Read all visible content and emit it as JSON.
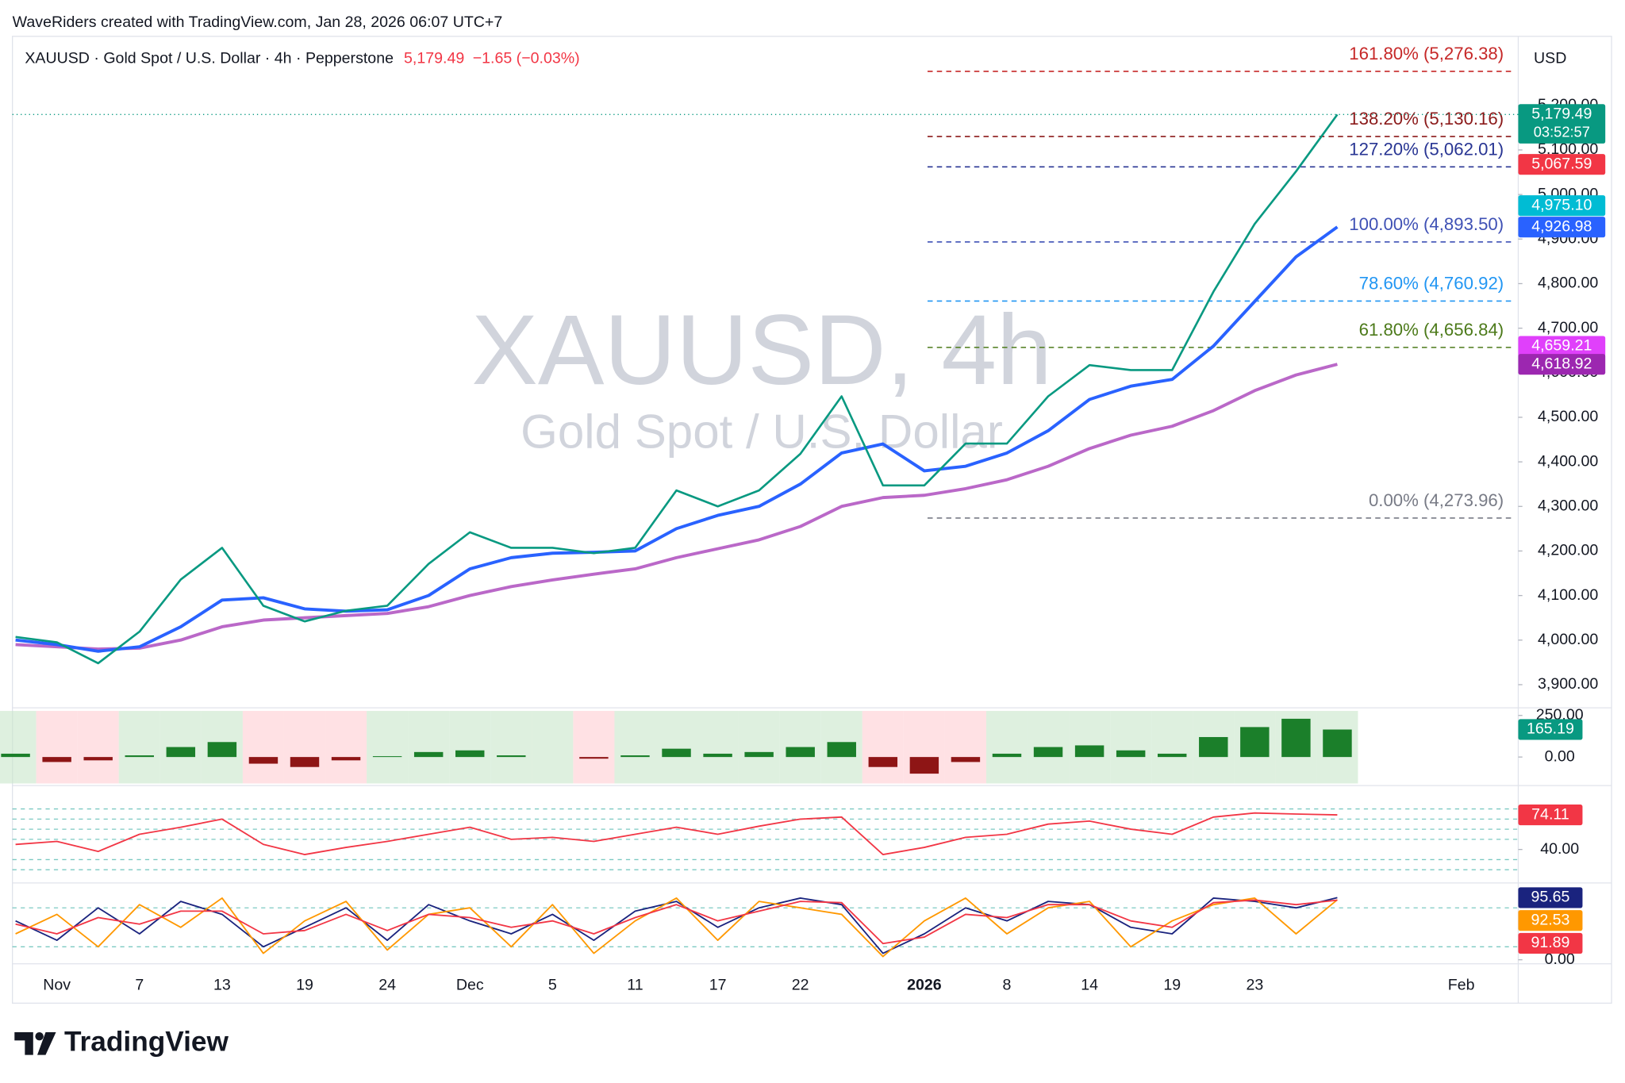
{
  "header": {
    "credit": "WaveRiders created with TradingView.com, Jan 28, 2026 06:07 UTC+7",
    "symbol": "XAUUSD · Gold Spot / U.S. Dollar · 4h · Pepperstone",
    "last": "5,179.49",
    "change": "−1.65 (−0.03%)"
  },
  "watermark": {
    "symbol": "XAUUSD, 4h",
    "name": "Gold Spot / U.S. Dollar"
  },
  "footer": {
    "brand": "TradingView"
  },
  "chart_data": {
    "type": "line",
    "currency": "USD",
    "categories": [
      null,
      "Nov",
      null,
      "7",
      null,
      "13",
      null,
      "19",
      null,
      "24",
      null,
      "Dec",
      null,
      "5",
      null,
      "11",
      null,
      "17",
      null,
      "22",
      null,
      null,
      "2026",
      null,
      "8",
      null,
      "14",
      null,
      "19",
      null,
      "23",
      null,
      null,
      null,
      null,
      "Feb"
    ],
    "series": [
      {
        "color": "#089981",
        "values": [
          4007,
          3995,
          3948,
          4019,
          4136,
          4207,
          4077,
          4042,
          4066,
          4077,
          4171,
          4242,
          4207,
          4207,
          4195,
          4207,
          4336,
          4300,
          4336,
          4418,
          4547,
          4347,
          4347,
          4441,
          4441,
          4547,
          4617,
          4606,
          4606,
          4782,
          4934,
          5052,
          5179.49,
          null,
          null,
          null
        ]
      },
      {
        "color": "#2962ff",
        "values": [
          4000,
          3990,
          3975,
          3985,
          4030,
          4090,
          4095,
          4070,
          4065,
          4068,
          4100,
          4160,
          4185,
          4195,
          4197,
          4200,
          4250,
          4280,
          4300,
          4350,
          4420,
          4440,
          4380,
          4390,
          4420,
          4470,
          4540,
          4570,
          4585,
          4660,
          4760,
          4860,
          4926.98,
          null,
          null,
          null
        ]
      },
      {
        "color": "#ba68c8",
        "values": [
          3990,
          3985,
          3980,
          3982,
          4000,
          4030,
          4045,
          4050,
          4055,
          4060,
          4075,
          4100,
          4120,
          4135,
          4148,
          4160,
          4185,
          4205,
          4225,
          4255,
          4300,
          4320,
          4325,
          4340,
          4360,
          4390,
          4430,
          4460,
          4480,
          4515,
          4560,
          4595,
          4618.92,
          null,
          null,
          null
        ]
      }
    ],
    "ylim": [
      3855,
      5355
    ],
    "yticks": [
      {
        "value": 3900,
        "label": "3,900.00"
      },
      {
        "value": 4000,
        "label": "4,000.00"
      },
      {
        "value": 4100,
        "label": "4,100.00"
      },
      {
        "value": 4200,
        "label": "4,200.00"
      },
      {
        "value": 4300,
        "label": "4,300.00"
      },
      {
        "value": 4400,
        "label": "4,400.00"
      },
      {
        "value": 4500,
        "label": "4,500.00"
      },
      {
        "value": 4600,
        "label": "4,600.00"
      },
      {
        "value": 4700,
        "label": "4,700.00"
      },
      {
        "value": 4800,
        "label": "4,800.00"
      },
      {
        "value": 4900,
        "label": "4,900.00"
      },
      {
        "value": 5000,
        "label": "5,000.00"
      },
      {
        "value": 5100,
        "label": "5,100.00"
      },
      {
        "value": 5200,
        "label": "5,200.00"
      }
    ],
    "fib_levels": [
      {
        "value": 5276.38,
        "label": "161.80% (5,276.38)",
        "color": "#c62828"
      },
      {
        "value": 5130.16,
        "label": "138.20% (5,130.16)",
        "color": "#8b1a1a"
      },
      {
        "value": 5062.01,
        "label": "127.20% (5,062.01)",
        "color": "#283593"
      },
      {
        "value": 4893.5,
        "label": "100.00% (4,893.50)",
        "color": "#3f51b5"
      },
      {
        "value": 4760.92,
        "label": "78.60% (4,760.92)",
        "color": "#2196f3"
      },
      {
        "value": 4656.84,
        "label": "61.80% (4,656.84)",
        "color": "#4c7a1a"
      },
      {
        "value": 4273.96,
        "label": "0.00% (4,273.96)",
        "color": "#787b86"
      }
    ],
    "price_labels": [
      {
        "value": 5179.49,
        "label": "5,179.49",
        "color": "#089981"
      },
      {
        "value": 5067.59,
        "label": "5,067.59",
        "color": "#f23645"
      },
      {
        "value": 4975.1,
        "label": "4,975.10",
        "color": "#00bcd4"
      },
      {
        "value": 4926.98,
        "label": "4,926.98",
        "color": "#2962ff"
      },
      {
        "value": 4659.21,
        "label": "4,659.21",
        "color": "#e040fb"
      },
      {
        "value": 4618.92,
        "label": "4,618.92",
        "color": "#9c27b0"
      }
    ],
    "countdown": "03:52:57",
    "panes": [
      {
        "type": "histogram",
        "ylim": [
          -159,
          277
        ],
        "yticks": [
          {
            "value": 250,
            "label": "250.00"
          },
          {
            "value": 0,
            "label": "0.00"
          }
        ],
        "up_color": "#1b7f2a",
        "down_color": "#8e1515",
        "series": [
          {
            "color": "#089981",
            "values": [
              20,
              -30,
              -20,
              10,
              60,
              90,
              -40,
              -60,
              -20,
              5,
              30,
              40,
              10,
              0,
              -10,
              10,
              50,
              20,
              30,
              60,
              90,
              -60,
              -100,
              -30,
              20,
              60,
              70,
              40,
              20,
              120,
              180,
              230,
              165.19,
              null,
              null,
              null
            ]
          }
        ]
      },
      {
        "type": "line",
        "ylim": [
          9,
          99
        ],
        "yticks": [
          {
            "value": 40,
            "label": "40.00"
          }
        ],
        "levels": [
          80,
          70,
          60,
          50,
          30,
          20
        ],
        "series": [
          {
            "color": "#f23645",
            "values": [
              45,
              48,
              38,
              55,
              62,
              70,
              45,
              35,
              42,
              48,
              55,
              62,
              50,
              52,
              48,
              55,
              62,
              55,
              63,
              70,
              72,
              35,
              42,
              52,
              55,
              65,
              68,
              60,
              55,
              72,
              76,
              75,
              74.11,
              null,
              null,
              null
            ]
          }
        ]
      },
      {
        "type": "line",
        "ylim": [
          -3,
          112
        ],
        "yticks": [
          {
            "value": 0,
            "label": "0.00"
          }
        ],
        "levels": [
          80,
          20
        ],
        "series": [
          {
            "color": "#1a237e",
            "values": [
              60,
              30,
              80,
              40,
              90,
              70,
              20,
              50,
              80,
              30,
              85,
              60,
              40,
              70,
              30,
              75,
              90,
              50,
              80,
              95,
              85,
              10,
              40,
              80,
              60,
              90,
              85,
              50,
              40,
              95,
              90,
              80,
              95.65,
              null,
              null,
              null
            ]
          },
          {
            "color": "#ff9800",
            "values": [
              40,
              70,
              20,
              85,
              50,
              95,
              10,
              60,
              90,
              15,
              70,
              80,
              20,
              85,
              10,
              60,
              95,
              30,
              90,
              80,
              70,
              5,
              60,
              95,
              40,
              80,
              90,
              20,
              60,
              85,
              95,
              40,
              92.53,
              null,
              null,
              null
            ]
          },
          {
            "color": "#f23645",
            "values": [
              55,
              40,
              65,
              55,
              75,
              75,
              40,
              45,
              70,
              45,
              70,
              65,
              50,
              60,
              40,
              65,
              85,
              60,
              75,
              90,
              88,
              25,
              35,
              70,
              65,
              85,
              85,
              60,
              50,
              88,
              92,
              85,
              91.89,
              null,
              null,
              null
            ]
          }
        ]
      }
    ]
  }
}
